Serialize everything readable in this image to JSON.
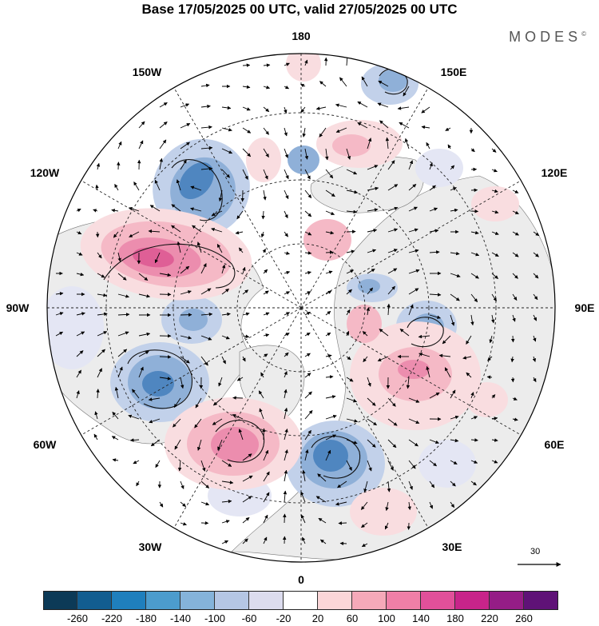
{
  "title": "Base 17/05/2025 00 UTC, valid 27/05/2025 00 UTC",
  "brand": {
    "name": "MODES",
    "mark": "©"
  },
  "map": {
    "projection": "north-polar-stereographic",
    "longitude_labels": {
      "top": "180",
      "bottom": "0",
      "left": "90W",
      "right": "90E",
      "upper_left_1": "150W",
      "upper_left_2": "120W",
      "upper_right_1": "150E",
      "upper_right_2": "120E",
      "lower_left_1": "60W",
      "lower_left_2": "30W",
      "lower_right_1": "60E",
      "lower_right_2": "30E"
    },
    "vector_scale_label": "30",
    "anomaly_colors": {
      "negative": [
        "#2d62a0",
        "#4f86c0",
        "#8fb0d8",
        "#c2d1ea",
        "#e4e6f4"
      ],
      "positive": [
        "#f9dde0",
        "#f5b9c6",
        "#ec8dae",
        "#df5f96",
        "#c83a82"
      ],
      "land": "#ececec"
    }
  },
  "colorbar": {
    "colors": [
      "#0c3a57",
      "#125d90",
      "#1f7fbd",
      "#4c9ccd",
      "#85b3da",
      "#b5c6e4",
      "#dcdcee",
      "#ffffff",
      "#fbd6d8",
      "#f5a9b9",
      "#ef7fa7",
      "#e1509a",
      "#c8248a",
      "#951d86",
      "#5f1277"
    ],
    "ticks": [
      "-260",
      "-220",
      "-180",
      "-140",
      "-100",
      "-60",
      "-20",
      "20",
      "60",
      "100",
      "140",
      "180",
      "220",
      "260"
    ]
  }
}
